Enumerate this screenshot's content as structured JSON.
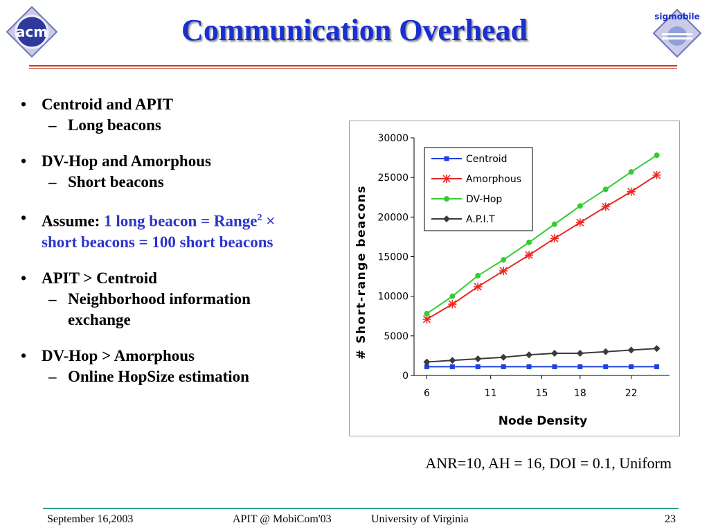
{
  "slide": {
    "title": "Communication Overhead",
    "logo_left": "acm",
    "logo_right": "sigmobile"
  },
  "bullets": [
    {
      "text": "Centroid and APIT",
      "sub": [
        "Long beacons"
      ]
    },
    {
      "text": "DV-Hop and Amorphous",
      "sub": [
        "Short beacons"
      ]
    },
    {
      "prefix": "Assume: ",
      "highlight_line1": "1 long beacon = Range",
      "superscript": "2",
      "times": " ×",
      "highlight_line2": "short beacons = 100 short beacons",
      "sub": []
    },
    {
      "text": "APIT >  Centroid",
      "sub": [
        "Neighborhood information",
        "exchange"
      ]
    },
    {
      "text": "DV-Hop > Amorphous",
      "sub": [
        "Online HopSize estimation"
      ]
    }
  ],
  "caption": "ANR=10, AH = 16, DOI = 0.1, Uniform",
  "footer": {
    "date": "September 16,2003",
    "conference": "APIT @ MobiCom'03",
    "university": "University of  Virginia",
    "page": "23"
  },
  "colors": {
    "title": "#1a2fcf",
    "highlight": "#2b35c8",
    "top_rule": "#c8391f",
    "bottom_rule": "#2aa391"
  },
  "chart_data": {
    "type": "line",
    "title": "",
    "xlabel": "Node Density",
    "ylabel": "# Short-range beacons",
    "xlim": [
      5,
      25
    ],
    "ylim": [
      0,
      30000
    ],
    "xticks": [
      6,
      11,
      15,
      18,
      22
    ],
    "yticks": [
      0,
      5000,
      10000,
      15000,
      20000,
      25000,
      30000
    ],
    "grid": false,
    "legend": "top-left",
    "x": [
      6,
      8,
      10,
      12,
      14,
      16,
      18,
      20,
      22,
      24
    ],
    "series": [
      {
        "name": "Centroid",
        "color": "#1f3fe0",
        "marker": "square",
        "values": [
          1100,
          1100,
          1100,
          1100,
          1100,
          1100,
          1100,
          1100,
          1100,
          1100
        ]
      },
      {
        "name": "Amorphous",
        "color": "#e8281e",
        "marker": "star",
        "values": [
          7100,
          9000,
          11200,
          13200,
          15200,
          17300,
          19300,
          21300,
          23200,
          25300
        ]
      },
      {
        "name": "DV-Hop",
        "color": "#33cc33",
        "marker": "circle",
        "values": [
          7800,
          10000,
          12600,
          14600,
          16800,
          19100,
          21400,
          23500,
          25700,
          27800
        ]
      },
      {
        "name": "A.P.I.T",
        "color": "#3a3a3a",
        "marker": "diamond",
        "values": [
          1700,
          1900,
          2100,
          2300,
          2600,
          2800,
          2800,
          3000,
          3200,
          3400
        ]
      }
    ]
  }
}
